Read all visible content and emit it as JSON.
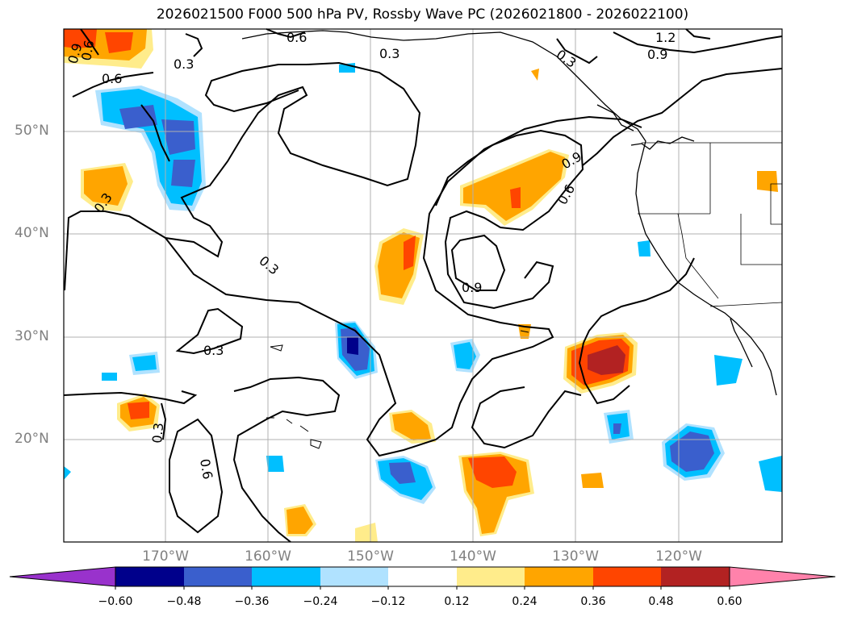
{
  "title": "2026021500 F000 500 hPa PV, Rossby Wave PC (2026021800 - 2026022100)",
  "axes": {
    "lat_labels": [
      "50°N",
      "40°N",
      "30°N",
      "20°N"
    ],
    "lon_labels": [
      "170°W",
      "160°W",
      "150°W",
      "140°W",
      "130°W",
      "120°W"
    ],
    "grid": true
  },
  "contour_labels": [
    "0.6",
    "0.3",
    "0.6",
    "0.9",
    "0.3",
    "1.2",
    "0.9",
    "0.3",
    "0.6",
    "0.3",
    "0.9",
    "0.6",
    "0.3",
    "0.9",
    "0.3",
    "0.3",
    "0.6"
  ],
  "colorbar": {
    "ticks": [
      "−0.60",
      "−0.48",
      "−0.36",
      "−0.24",
      "−0.12",
      "0.12",
      "0.24",
      "0.36",
      "0.48",
      "0.60"
    ],
    "colors": [
      "#9932cc",
      "#00008b",
      "#3a5fcd",
      "#00bfff",
      "#b0e2ff",
      "#ffffff",
      "#ffec8b",
      "#ffa500",
      "#ff4500",
      "#b22222",
      "#ff82ab"
    ],
    "extend": "both"
  }
}
